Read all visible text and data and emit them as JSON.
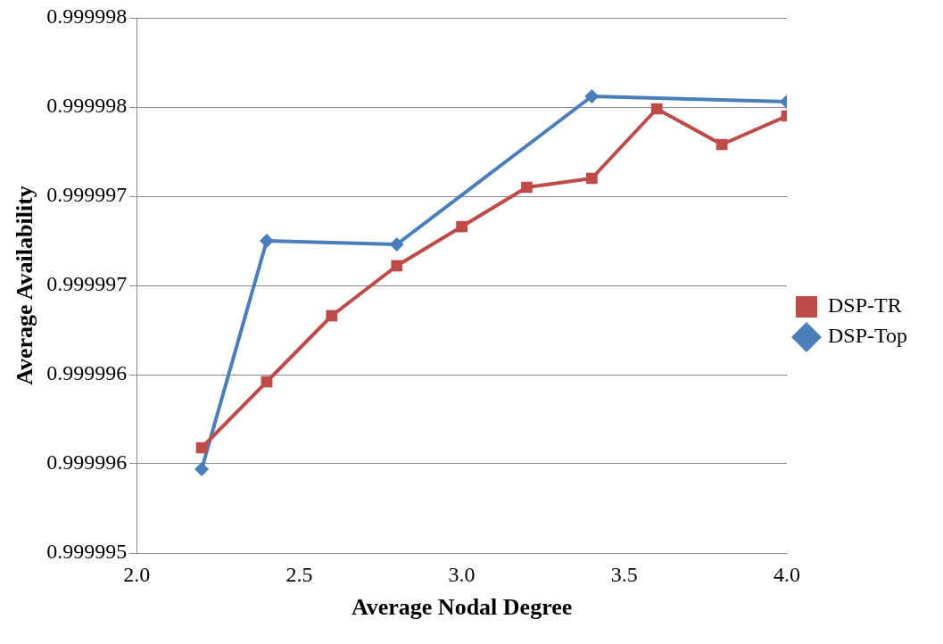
{
  "chart_data": {
    "type": "line",
    "xlabel": "Average Nodal Degree",
    "ylabel": "Average Availability",
    "xlim": [
      2,
      4
    ],
    "xticks": [
      {
        "value": 2,
        "label": "2.0"
      },
      {
        "value": 2.5,
        "label": "2.5"
      },
      {
        "value": 3,
        "label": "3.0"
      },
      {
        "value": 3.5,
        "label": "3.5"
      },
      {
        "value": 4,
        "label": "4.0"
      }
    ],
    "ylim": [
      0.999995,
      0.999998
    ],
    "yticks": [
      {
        "value": 0.999995,
        "label": "0.999995"
      },
      {
        "value": 0.9999955,
        "label": "0.999996"
      },
      {
        "value": 0.999996,
        "label": "0.999996"
      },
      {
        "value": 0.9999965,
        "label": "0.999997"
      },
      {
        "value": 0.999997,
        "label": "0.999997"
      },
      {
        "value": 0.9999975,
        "label": "0.999998"
      },
      {
        "value": 0.999998,
        "label": "0.999998"
      }
    ],
    "grid": "y",
    "legend": "right",
    "line_style": "solid",
    "series": [
      {
        "name": "DSP-TR",
        "color": "#be4b48",
        "marker": "square",
        "x": [
          2.2,
          2.4,
          2.6,
          2.8,
          3.0,
          3.2,
          3.4,
          3.6,
          3.8,
          4.0
        ],
        "values": [
          0.99999559,
          0.99999596,
          0.99999633,
          0.99999661,
          0.99999683,
          0.99999705,
          0.9999971,
          0.99999749,
          0.99999729,
          0.99999745
        ]
      },
      {
        "name": "DSP-Top",
        "color": "#4a7ebb",
        "marker": "diamond",
        "x": [
          2.2,
          2.4,
          2.8,
          3.4,
          4.0
        ],
        "values": [
          0.99999547,
          0.99999675,
          0.99999673,
          0.99999756,
          0.99999753
        ]
      }
    ]
  }
}
